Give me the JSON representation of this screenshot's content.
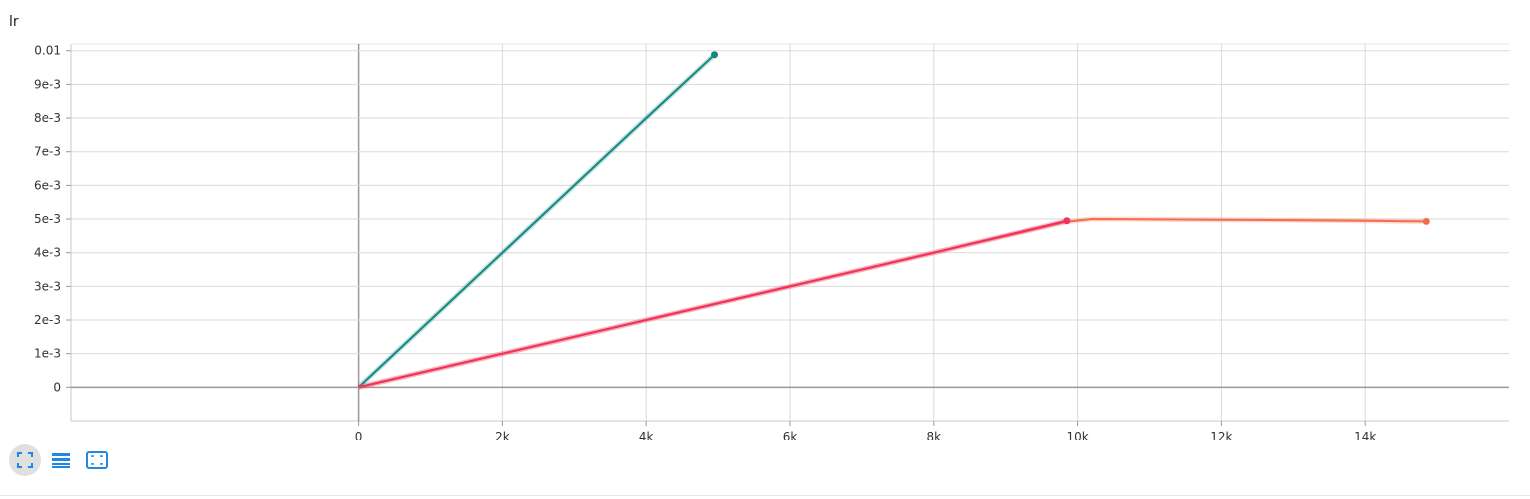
{
  "chart_data": {
    "type": "line",
    "title": "lr",
    "xlabel": "",
    "ylabel": "",
    "xlim": [
      -4000,
      16000
    ],
    "ylim": [
      -0.001,
      0.0102
    ],
    "x_ticks": [
      0,
      2000,
      4000,
      6000,
      8000,
      10000,
      12000,
      14000
    ],
    "x_tick_labels": [
      "0",
      "2k",
      "4k",
      "6k",
      "8k",
      "10k",
      "12k",
      "14k"
    ],
    "y_ticks": [
      0,
      0.001,
      0.002,
      0.003,
      0.004,
      0.005,
      0.006,
      0.007,
      0.008,
      0.009,
      0.01
    ],
    "y_tick_labels": [
      "0",
      "1e-3",
      "2e-3",
      "3e-3",
      "4e-3",
      "5e-3",
      "6e-3",
      "7e-3",
      "8e-3",
      "9e-3",
      "0.01"
    ],
    "grid": true,
    "series": [
      {
        "color": "#12897f",
        "x": [
          0,
          1000,
          2000,
          3000,
          4000,
          4950
        ],
        "y": [
          0,
          0.002,
          0.004,
          0.006,
          0.008,
          0.00988
        ]
      },
      {
        "color": "#f26d4f",
        "x": [
          0,
          2000,
          4000,
          6000,
          8000,
          9850,
          10200,
          12000,
          14000,
          14850
        ],
        "y": [
          0,
          0.001,
          0.002,
          0.003,
          0.004,
          0.00492,
          0.005,
          0.00498,
          0.00495,
          0.00493
        ]
      },
      {
        "color": "#f0305f",
        "x": [
          0,
          2000,
          4000,
          6000,
          8000,
          9850
        ],
        "y": [
          0,
          0.001,
          0.002,
          0.003,
          0.004,
          0.00495
        ]
      }
    ]
  },
  "toolbar": {
    "fullscreen_icon": "fullscreen-icon",
    "log_scale_icon": "log-scale-icon",
    "fit_domain_icon": "fit-domain-icon"
  }
}
